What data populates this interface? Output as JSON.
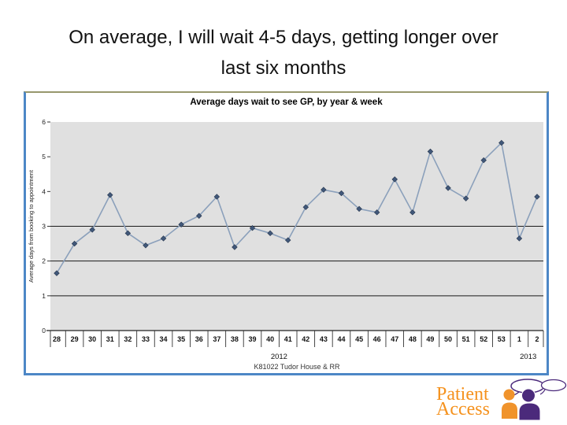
{
  "slide": {
    "title_line1": "On average, I will wait 4-5 days, getting longer over",
    "title_line2": "last six months"
  },
  "chart_data": {
    "type": "line",
    "title": "Average days wait to see GP, by year & week",
    "xlabel": "",
    "ylabel": "Average days from booking to appointment",
    "ylim": [
      0,
      6
    ],
    "yticks": [
      0,
      1,
      2,
      3,
      4,
      5,
      6
    ],
    "dark_gridlines_at": [
      1,
      2,
      3
    ],
    "legend": "none",
    "categories": [
      "28",
      "29",
      "30",
      "31",
      "32",
      "33",
      "34",
      "35",
      "36",
      "37",
      "38",
      "39",
      "40",
      "41",
      "42",
      "43",
      "44",
      "45",
      "46",
      "47",
      "48",
      "49",
      "50",
      "51",
      "52",
      "53",
      "1",
      "2"
    ],
    "values": [
      1.65,
      2.5,
      2.9,
      3.9,
      2.8,
      2.45,
      2.65,
      3.05,
      3.3,
      3.85,
      2.4,
      2.95,
      2.8,
      2.6,
      3.55,
      4.05,
      3.95,
      3.5,
      3.4,
      4.35,
      3.4,
      5.15,
      4.1,
      3.8,
      4.9,
      5.4,
      2.65,
      3.85
    ],
    "year_groups": [
      {
        "label": "2012",
        "start": 0,
        "end": 25
      },
      {
        "label": "2013",
        "start": 26,
        "end": 27
      }
    ],
    "caption": "K81022 Tudor House & RR",
    "plot_bg": "#e0e0e0",
    "line_color": "#8ba0bb",
    "marker_color": "#41587a",
    "marker_shape": "diamond"
  },
  "logo": {
    "line1": "Patient",
    "line2": "Access",
    "text_color": "#f5921e",
    "orange": "#f0932b",
    "purple": "#4b2a7b"
  },
  "frame": {
    "border_color": "#4d87c6",
    "top_edge_color": "#97976d"
  }
}
